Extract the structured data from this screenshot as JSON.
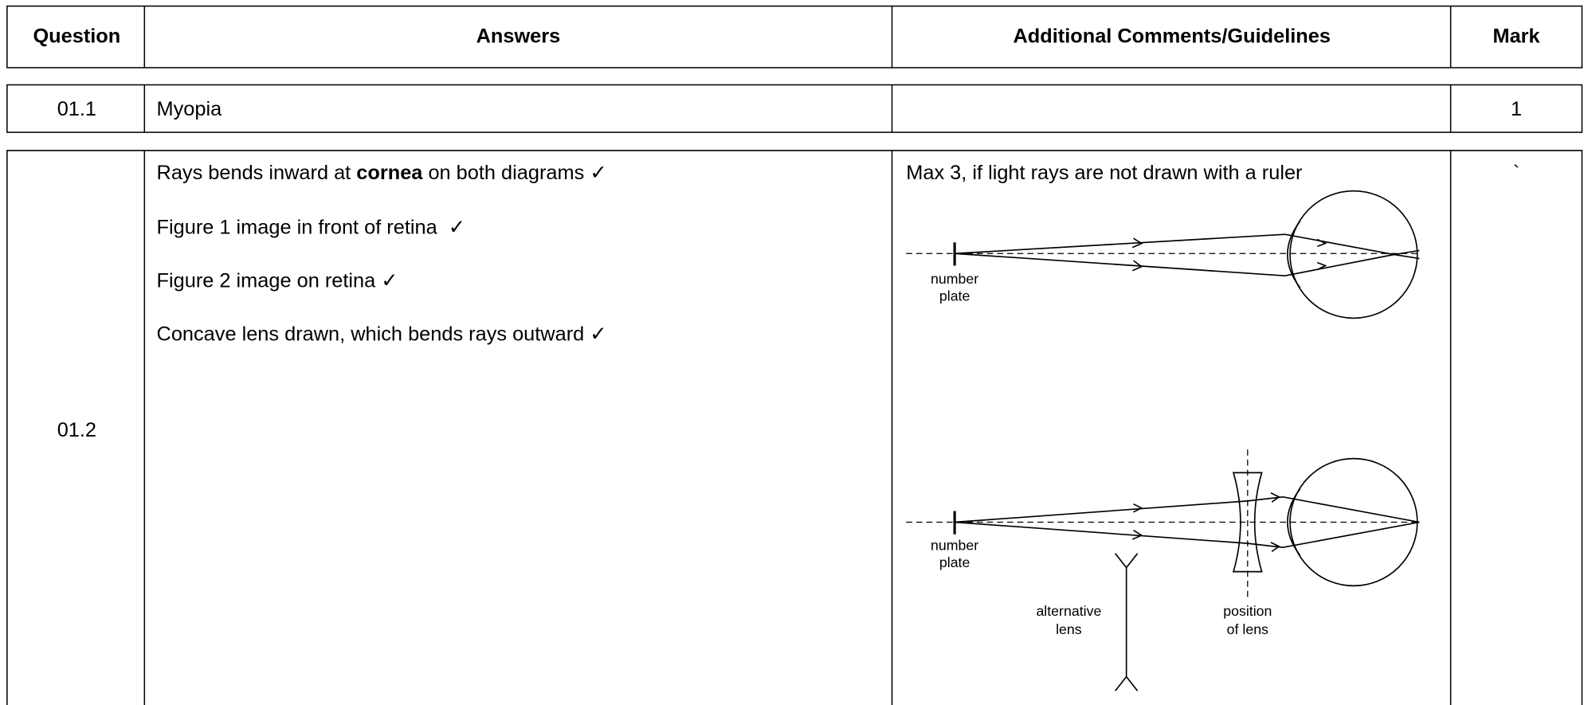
{
  "header": {
    "columns": [
      "Question",
      "Answers",
      "Additional Comments/Guidelines",
      "Mark"
    ]
  },
  "rows": [
    {
      "question": "01.1",
      "answer_lines": [
        [
          "Myopia"
        ]
      ],
      "mark": "1"
    },
    {
      "question": "01.2",
      "answer_lines": [
        [
          "Rays bends inward at ",
          "cornea",
          " on both diagrams ✓"
        ],
        [
          "Figure 1 image in front of retina  ✓"
        ],
        [
          "Figure 2 image on retina ✓"
        ],
        [
          "Concave lens drawn, which bends rays outward ✓"
        ]
      ],
      "comments": "Max 3, if light rays are not drawn with a ruler",
      "mark": "`",
      "diagrams": [
        {
          "labels": [
            [
              "number",
              "plate"
            ]
          ]
        },
        {
          "labels": [
            [
              "number",
              "plate"
            ],
            [
              "alternative",
              "lens"
            ],
            [
              "position",
              "of lens"
            ]
          ]
        }
      ]
    }
  ]
}
